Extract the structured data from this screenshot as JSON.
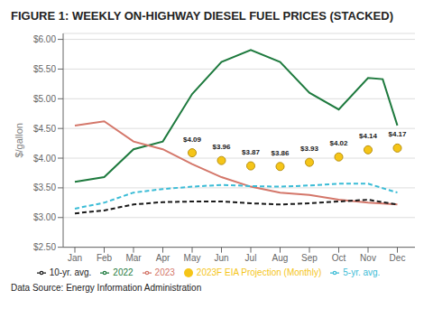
{
  "chart_data": {
    "type": "line",
    "title": "FIGURE 1: WEEKLY ON-HIGHWAY DIESEL FUEL PRICES (STACKED)",
    "ylabel": "$/gallon",
    "annotations": [
      "Data Source: Energy Information Administration"
    ],
    "xlim": [
      -0.4,
      11.6
    ],
    "xticks": [
      {
        "value": 0,
        "label": "Jan"
      },
      {
        "value": 1,
        "label": "Feb"
      },
      {
        "value": 2,
        "label": "Mar"
      },
      {
        "value": 3,
        "label": "Apr"
      },
      {
        "value": 4,
        "label": "May"
      },
      {
        "value": 5,
        "label": "Jun"
      },
      {
        "value": 6,
        "label": "Jul"
      },
      {
        "value": 7,
        "label": "Aug"
      },
      {
        "value": 8,
        "label": "Sep"
      },
      {
        "value": 9,
        "label": "Oct"
      },
      {
        "value": 10,
        "label": "Nov"
      },
      {
        "value": 11,
        "label": "Dec"
      }
    ],
    "ylim": [
      2.5,
      6.1
    ],
    "yticks": [
      {
        "value": 2.5,
        "label": "$2.50"
      },
      {
        "value": 3.0,
        "label": "$3.00"
      },
      {
        "value": 3.5,
        "label": "$3.50"
      },
      {
        "value": 4.0,
        "label": "$4.00"
      },
      {
        "value": 4.5,
        "label": "$4.50"
      },
      {
        "value": 5.0,
        "label": "$5.00"
      },
      {
        "value": 5.5,
        "label": "$5.50"
      },
      {
        "value": 6.0,
        "label": "$6.00"
      }
    ],
    "grid": true,
    "legend": "bottom",
    "series": [
      {
        "name": "2022",
        "color": "#1e7a3e",
        "line_style": "solid",
        "x": [
          0,
          1,
          2,
          3,
          4,
          5,
          6,
          7,
          8,
          9,
          10,
          10.5,
          11
        ],
        "values": [
          3.6,
          3.68,
          4.15,
          4.28,
          5.08,
          5.62,
          5.82,
          5.62,
          5.1,
          4.82,
          5.35,
          5.33,
          4.55
        ]
      },
      {
        "name": "2023",
        "color": "#d4776a",
        "line_style": "solid",
        "x": [
          0,
          1,
          2,
          3,
          4,
          5,
          6,
          7,
          8,
          9,
          10,
          11
        ],
        "values": [
          4.55,
          4.62,
          4.28,
          4.15,
          3.9,
          3.68,
          3.52,
          3.42,
          3.38,
          3.3,
          3.25,
          3.22
        ]
      },
      {
        "name": "5-yr. avg.",
        "color": "#3bbcd6",
        "line_style": "dashed",
        "x": [
          0,
          1,
          2,
          3,
          4,
          5,
          6,
          7,
          8,
          9,
          10,
          11
        ],
        "values": [
          3.15,
          3.25,
          3.42,
          3.48,
          3.52,
          3.55,
          3.53,
          3.52,
          3.54,
          3.57,
          3.57,
          3.42
        ]
      },
      {
        "name": "10-yr. avg.",
        "color": "#1a1a1a",
        "line_style": "dashed",
        "x": [
          0,
          1,
          2,
          3,
          4,
          5,
          6,
          7,
          8,
          9,
          10,
          11
        ],
        "values": [
          3.07,
          3.12,
          3.22,
          3.26,
          3.27,
          3.27,
          3.24,
          3.22,
          3.24,
          3.27,
          3.3,
          3.22
        ]
      },
      {
        "name": "2023F EIA Projection (Monthly)",
        "type": "scatter",
        "marker": "circle",
        "color": "#f5c518",
        "data_labels": true,
        "x": [
          4,
          5,
          6,
          7,
          8,
          9,
          10,
          11
        ],
        "values": [
          4.09,
          3.96,
          3.87,
          3.86,
          3.93,
          4.02,
          4.14,
          4.17
        ],
        "value_labels": [
          "$4.09",
          "$3.96",
          "$3.87",
          "$3.86",
          "$3.93",
          "$4.02",
          "$4.14",
          "$4.17"
        ]
      }
    ]
  }
}
